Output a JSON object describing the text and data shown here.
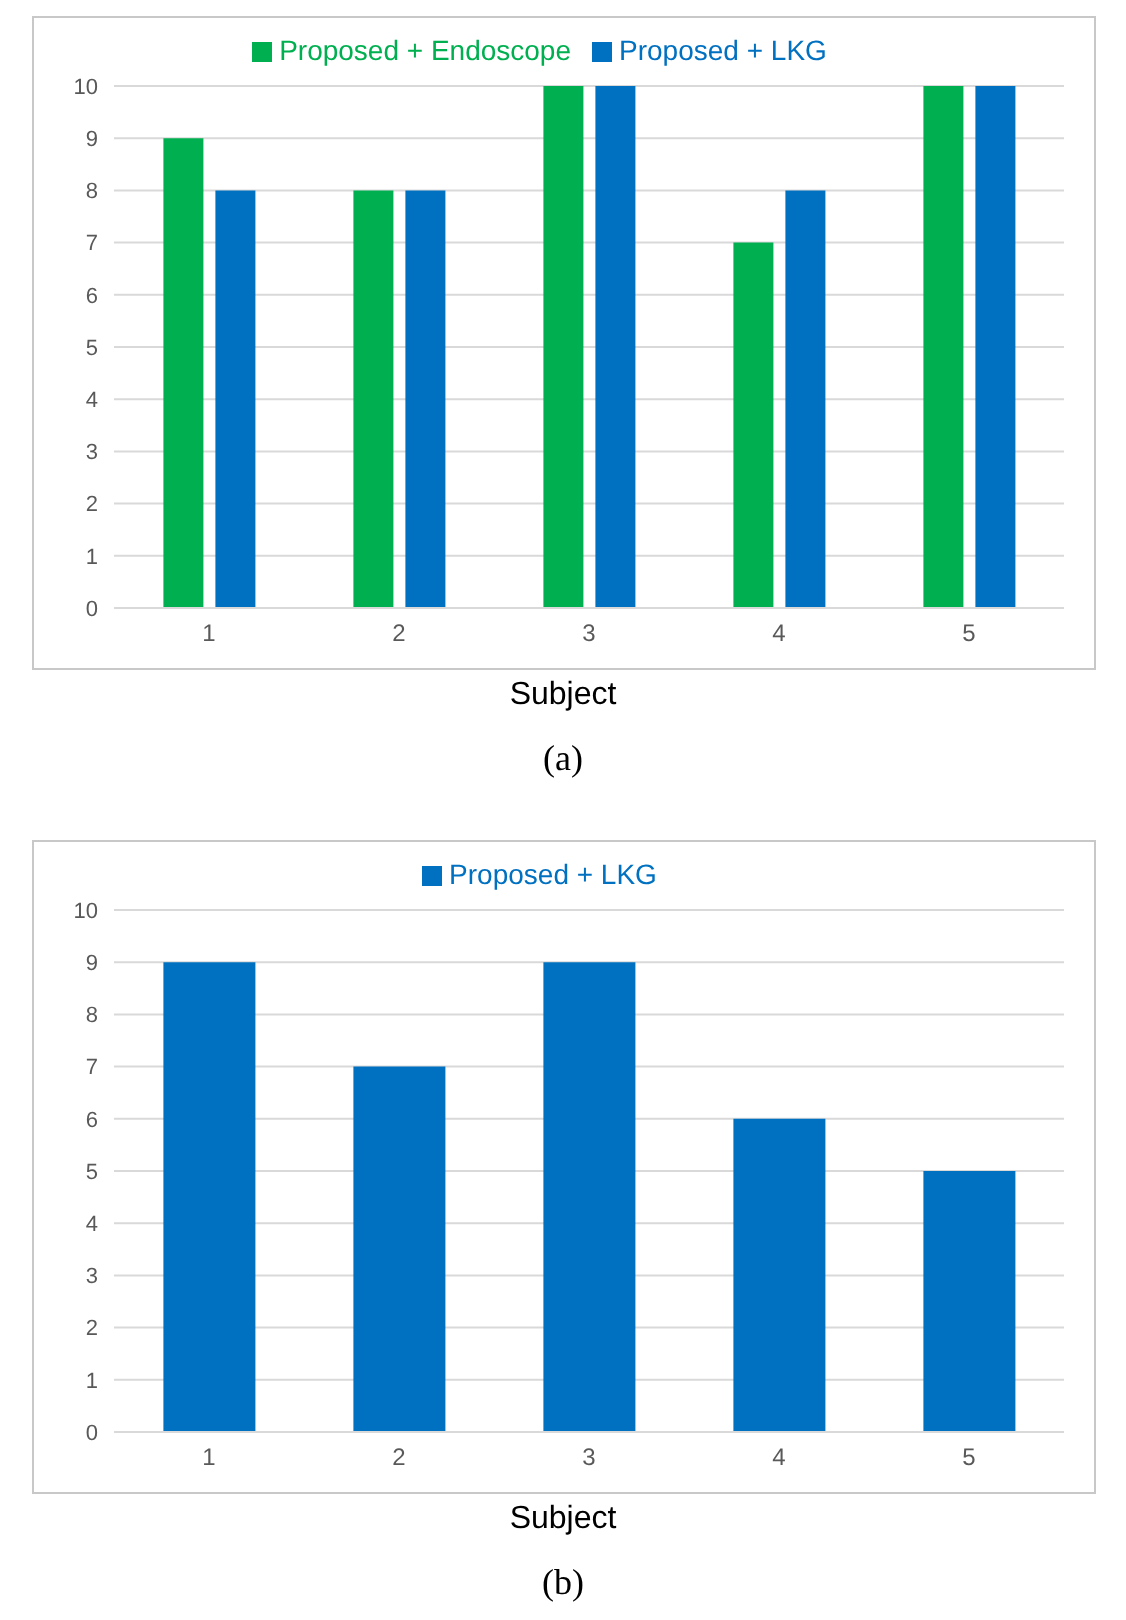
{
  "chart_data": [
    {
      "type": "bar",
      "categories": [
        "1",
        "2",
        "3",
        "4",
        "5"
      ],
      "xlabel": "Subject",
      "series": [
        {
          "name": "Proposed + Endoscope",
          "color": "#00b050",
          "values": [
            9,
            8,
            10,
            7,
            10
          ]
        },
        {
          "name": "Proposed + LKG",
          "color": "#0070c0",
          "values": [
            8,
            8,
            10,
            8,
            10
          ]
        }
      ],
      "ylim": [
        0,
        10
      ],
      "yticks": [
        0,
        1,
        2,
        3,
        4,
        5,
        6,
        7,
        8,
        9,
        10
      ],
      "grid": "y",
      "legend": "top",
      "annotations": [
        "(a)"
      ]
    },
    {
      "type": "bar",
      "categories": [
        "1",
        "2",
        "3",
        "4",
        "5"
      ],
      "xlabel": "Subject",
      "series": [
        {
          "name": "Proposed + LKG",
          "color": "#0070c0",
          "values": [
            9,
            7,
            9,
            6,
            5
          ]
        }
      ],
      "ylim": [
        0,
        10
      ],
      "yticks": [
        0,
        1,
        2,
        3,
        4,
        5,
        6,
        7,
        8,
        9,
        10
      ],
      "grid": "y",
      "legend": "top",
      "annotations": [
        "(b)"
      ]
    }
  ]
}
